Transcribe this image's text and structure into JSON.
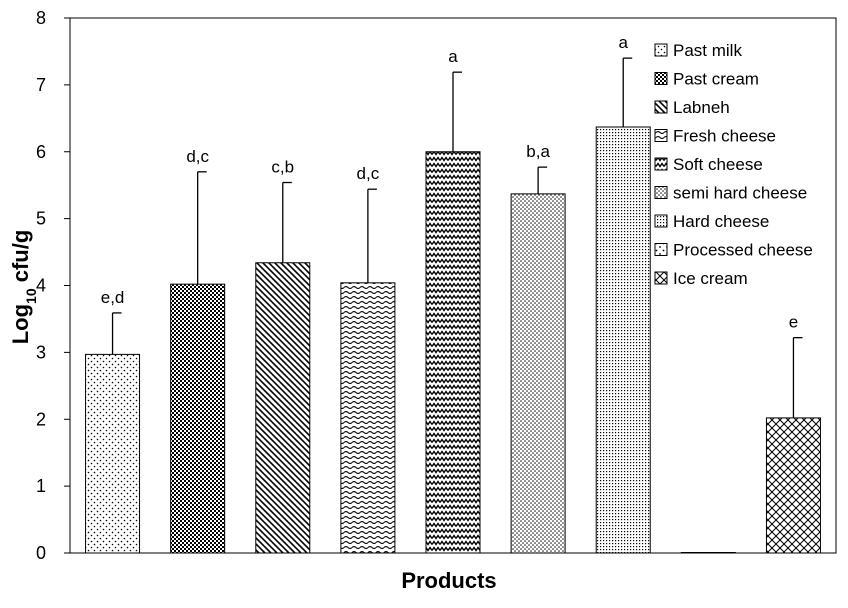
{
  "chart_data": {
    "type": "bar",
    "title": "",
    "xlabel": "Products",
    "ylabel_main": "Log",
    "ylabel_sub": "10",
    "ylabel_rest": " cfu/g",
    "ylim": [
      0,
      8
    ],
    "yticks": [
      0,
      1,
      2,
      3,
      4,
      5,
      6,
      7,
      8
    ],
    "grid": false,
    "legend_position": "top-right",
    "categories": [
      "Past milk",
      "Past cream",
      "Labneh",
      "Fresh cheese",
      "Soft cheese",
      "semi hard cheese",
      "Hard cheese",
      "Processed cheese",
      "Ice cream"
    ],
    "values": [
      2.97,
      4.02,
      4.34,
      4.04,
      6.0,
      5.37,
      6.37,
      0.0,
      2.02
    ],
    "errors": [
      0.62,
      1.68,
      1.2,
      1.4,
      1.19,
      0.4,
      1.03,
      0.0,
      1.2
    ],
    "significance": [
      "e,d",
      "d,c",
      "c,b",
      "d,c",
      "a",
      "b,a",
      "a",
      "",
      "e"
    ],
    "patterns": [
      "dots",
      "checker",
      "diag-down",
      "wave",
      "zigzag",
      "fine-dots",
      "tiny-grid",
      "sparse-dots",
      "diag-cross"
    ]
  }
}
